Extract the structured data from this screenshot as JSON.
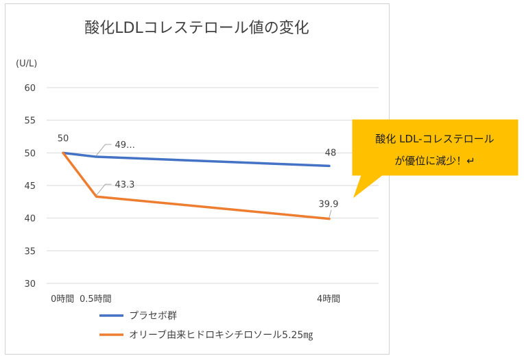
{
  "chart_data": {
    "type": "line",
    "title": "酸化LDLコレステロール値の変化",
    "ylabel": "(U/L)",
    "xlabel": "",
    "ylim": [
      30,
      60
    ],
    "yticks": [
      30,
      35,
      40,
      45,
      50,
      55,
      60
    ],
    "x_values": [
      0,
      0.5,
      4
    ],
    "x_tick_labels": [
      "0時間",
      "0.5時間",
      "4時間"
    ],
    "grid": true,
    "legend_position": "bottom",
    "series": [
      {
        "name": "プラセボ群",
        "color": "#4472C4",
        "values": [
          50,
          49.4,
          48
        ],
        "labels": [
          "",
          "49…",
          "48"
        ]
      },
      {
        "name": "オリーブ由来ヒドロキシチロソール5.25㎎",
        "color": "#ED7D31",
        "values": [
          50,
          43.3,
          39.9
        ],
        "labels": [
          "50",
          "43.3",
          "39.9"
        ]
      }
    ],
    "annotation": {
      "lines": [
        "酸化 LDL-コレステロール",
        "が優位に減少！↵"
      ],
      "color": "#FFC000"
    }
  }
}
